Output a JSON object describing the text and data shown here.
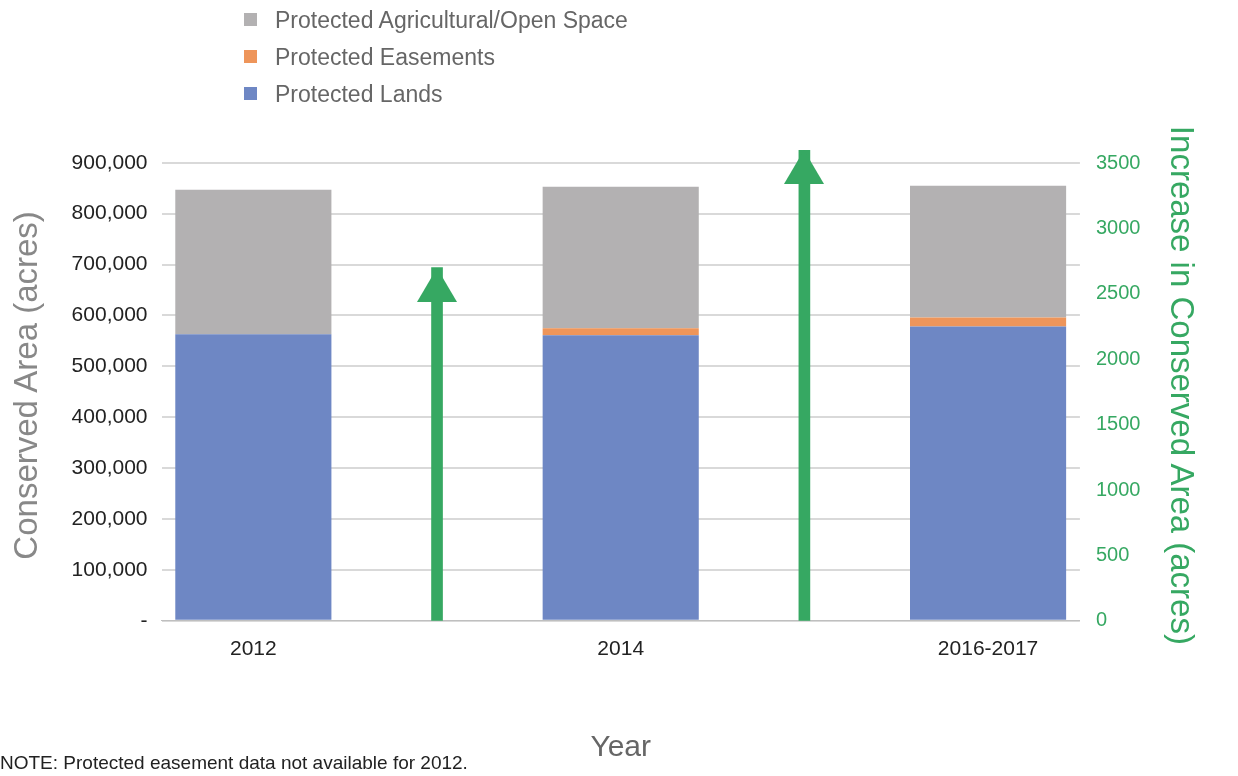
{
  "chart_data": {
    "type": "bar",
    "stacked": true,
    "xlabel": "Year",
    "ylabel": "Conserved Area (acres)",
    "y2label": "Increase in Conserved Area (acres)",
    "categories": [
      "2012",
      null,
      "2014",
      null,
      "2016-2017"
    ],
    "series": [
      {
        "name": "Protected Lands",
        "color": "#6e87c4",
        "values": [
          563000,
          null,
          561000,
          null,
          578000
        ]
      },
      {
        "name": "Protected Easements",
        "color": "#ee955a",
        "values": [
          null,
          null,
          14000,
          null,
          18000
        ]
      },
      {
        "name": "Protected Agricultural/Open Space",
        "color": "#b3b1b2",
        "values": [
          284000,
          null,
          278000,
          null,
          259000
        ]
      },
      {
        "type": "bar",
        "axis": "y2",
        "marker": "triangle",
        "color": "#36a862",
        "values": [
          null,
          2700,
          null,
          3600,
          null
        ]
      }
    ],
    "ylim": [
      0,
      925000
    ],
    "yticks": [
      {
        "value": 0,
        "label": "-"
      },
      {
        "value": 100000,
        "label": "100,000"
      },
      {
        "value": 200000,
        "label": "200,000"
      },
      {
        "value": 300000,
        "label": "300,000"
      },
      {
        "value": 400000,
        "label": "400,000"
      },
      {
        "value": 500000,
        "label": "500,000"
      },
      {
        "value": 600000,
        "label": "600,000"
      },
      {
        "value": 700000,
        "label": "700,000"
      },
      {
        "value": 800000,
        "label": "800,000"
      },
      {
        "value": 900000,
        "label": "900,000"
      }
    ],
    "y2lim": [
      0,
      3600
    ],
    "y2ticks": [
      0,
      500,
      1000,
      1500,
      2000,
      2500,
      3000,
      3500
    ],
    "grid": "y",
    "legend": "top left",
    "annotations": [
      "NOTE: Protected easement data not available for 2012."
    ]
  }
}
